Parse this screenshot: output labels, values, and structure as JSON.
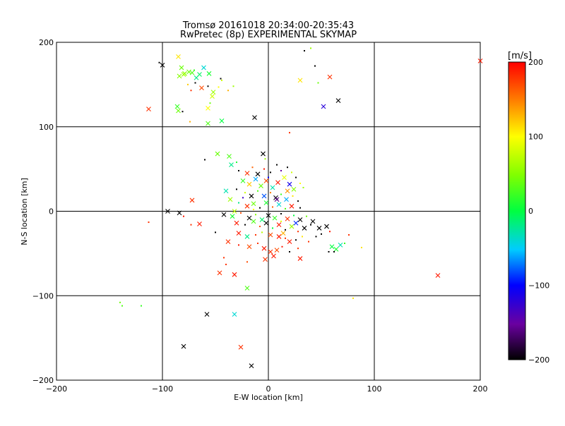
{
  "chart_data": {
    "type": "scatter",
    "title": "Tromsø 20161018 20:34:00-20:35:43",
    "subtitle": "RwPretec (8p) EXPERIMENTAL SKYMAP",
    "xlabel": "E-W location [km]",
    "ylabel": "N-S location [km]",
    "xlim": [
      -200,
      200
    ],
    "ylim": [
      -200,
      200
    ],
    "x_ticks": [
      -200,
      -100,
      0,
      100,
      200
    ],
    "y_ticks": [
      -200,
      -100,
      0,
      100,
      200
    ],
    "x_tick_labels": [
      "−200",
      "−100",
      "0",
      "100",
      "200"
    ],
    "y_tick_labels": [
      "−200",
      "−100",
      "0",
      "100",
      "200"
    ],
    "grid": true,
    "colorbar": {
      "label": "[m/s]",
      "min": -200,
      "max": 200,
      "ticks": [
        200,
        100,
        0,
        -100,
        -200
      ],
      "tick_labels": [
        "200",
        "100",
        "0",
        "−100",
        "−200"
      ]
    },
    "points": [
      {
        "x": -100,
        "y": 173,
        "v": -200,
        "m": "x"
      },
      {
        "x": -103,
        "y": 176,
        "v": -200,
        "m": "dot"
      },
      {
        "x": -85,
        "y": 183,
        "v": 110,
        "m": "x"
      },
      {
        "x": -82,
        "y": 170,
        "v": 40,
        "m": "x"
      },
      {
        "x": -79,
        "y": 163,
        "v": 50,
        "m": "x"
      },
      {
        "x": -75,
        "y": 165,
        "v": 40,
        "m": "x"
      },
      {
        "x": -72,
        "y": 164,
        "v": 30,
        "m": "x"
      },
      {
        "x": -70,
        "y": 167,
        "v": 20,
        "m": "dot"
      },
      {
        "x": -68,
        "y": 158,
        "v": -20,
        "m": "x"
      },
      {
        "x": -65,
        "y": 162,
        "v": -10,
        "m": "x"
      },
      {
        "x": -61,
        "y": 170,
        "v": -40,
        "m": "x"
      },
      {
        "x": -56,
        "y": 163,
        "v": 10,
        "m": "x"
      },
      {
        "x": -80,
        "y": 162,
        "v": 60,
        "m": "x"
      },
      {
        "x": -84,
        "y": 160,
        "v": 50,
        "m": "x"
      },
      {
        "x": -76,
        "y": 150,
        "v": 120,
        "m": "dot"
      },
      {
        "x": -73,
        "y": 143,
        "v": 180,
        "m": "dot"
      },
      {
        "x": -69,
        "y": 152,
        "v": -200,
        "m": "dot"
      },
      {
        "x": -63,
        "y": 146,
        "v": 170,
        "m": "x"
      },
      {
        "x": -57,
        "y": 148,
        "v": -200,
        "m": "dot"
      },
      {
        "x": -53,
        "y": 136,
        "v": 80,
        "m": "x"
      },
      {
        "x": -52,
        "y": 141,
        "v": 60,
        "m": "x"
      },
      {
        "x": -47,
        "y": 147,
        "v": 100,
        "m": "dot"
      },
      {
        "x": -44,
        "y": 155,
        "v": 80,
        "m": "dot"
      },
      {
        "x": -38,
        "y": 143,
        "v": 130,
        "m": "dot"
      },
      {
        "x": -33,
        "y": 148,
        "v": 60,
        "m": "dot"
      },
      {
        "x": -55,
        "y": 128,
        "v": 40,
        "m": "dot"
      },
      {
        "x": -57,
        "y": 122,
        "v": 100,
        "m": "x"
      },
      {
        "x": -86,
        "y": 124,
        "v": 20,
        "m": "x"
      },
      {
        "x": -85,
        "y": 119,
        "v": 40,
        "m": "x"
      },
      {
        "x": -81,
        "y": 118,
        "v": -200,
        "m": "dot"
      },
      {
        "x": -113,
        "y": 121,
        "v": 180,
        "m": "x"
      },
      {
        "x": -74,
        "y": 106,
        "v": 130,
        "m": "dot"
      },
      {
        "x": -57,
        "y": 104,
        "v": 30,
        "m": "x"
      },
      {
        "x": -44,
        "y": 107,
        "v": 0,
        "m": "x"
      },
      {
        "x": -45,
        "y": 157,
        "v": -200,
        "m": "dot"
      },
      {
        "x": -13,
        "y": 111,
        "v": -200,
        "m": "x"
      },
      {
        "x": 34,
        "y": 190,
        "v": -200,
        "m": "dot"
      },
      {
        "x": 40,
        "y": 193,
        "v": 60,
        "m": "dot"
      },
      {
        "x": 44,
        "y": 172,
        "v": -200,
        "m": "dot"
      },
      {
        "x": 58,
        "y": 159,
        "v": 180,
        "m": "x"
      },
      {
        "x": 47,
        "y": 152,
        "v": 40,
        "m": "dot"
      },
      {
        "x": 30,
        "y": 155,
        "v": 110,
        "m": "x"
      },
      {
        "x": 52,
        "y": 124,
        "v": -120,
        "m": "x"
      },
      {
        "x": 66,
        "y": 131,
        "v": -200,
        "m": "x"
      },
      {
        "x": 200,
        "y": 178,
        "v": 190,
        "m": "x"
      },
      {
        "x": 20,
        "y": 93,
        "v": 180,
        "m": "dot"
      },
      {
        "x": -48,
        "y": 68,
        "v": 40,
        "m": "x"
      },
      {
        "x": -37,
        "y": 65,
        "v": 30,
        "m": "x"
      },
      {
        "x": -35,
        "y": 55,
        "v": -20,
        "m": "x"
      },
      {
        "x": -30,
        "y": 58,
        "v": 10,
        "m": "dot"
      },
      {
        "x": -60,
        "y": 61,
        "v": -200,
        "m": "dot"
      },
      {
        "x": -5,
        "y": 68,
        "v": -200,
        "m": "x"
      },
      {
        "x": -3,
        "y": 62,
        "v": 60,
        "m": "dot"
      },
      {
        "x": -28,
        "y": 48,
        "v": -200,
        "m": "dot"
      },
      {
        "x": -20,
        "y": 45,
        "v": 180,
        "m": "x"
      },
      {
        "x": -15,
        "y": 52,
        "v": 160,
        "m": "dot"
      },
      {
        "x": -10,
        "y": 44,
        "v": -200,
        "m": "x"
      },
      {
        "x": -4,
        "y": 50,
        "v": 190,
        "m": "dot"
      },
      {
        "x": 2,
        "y": 46,
        "v": -200,
        "m": "dot"
      },
      {
        "x": 8,
        "y": 55,
        "v": -200,
        "m": "dot"
      },
      {
        "x": 12,
        "y": 48,
        "v": -150,
        "m": "dot"
      },
      {
        "x": 18,
        "y": 52,
        "v": -200,
        "m": "dot"
      },
      {
        "x": 22,
        "y": 46,
        "v": 80,
        "m": "dot"
      },
      {
        "x": 26,
        "y": 40,
        "v": -200,
        "m": "dot"
      },
      {
        "x": 30,
        "y": 33,
        "v": 100,
        "m": "dot"
      },
      {
        "x": 33,
        "y": 28,
        "v": 60,
        "m": "dot"
      },
      {
        "x": -24,
        "y": 36,
        "v": 20,
        "m": "x"
      },
      {
        "x": -18,
        "y": 32,
        "v": 120,
        "m": "x"
      },
      {
        "x": -12,
        "y": 38,
        "v": -60,
        "m": "x"
      },
      {
        "x": -7,
        "y": 30,
        "v": 40,
        "m": "x"
      },
      {
        "x": -2,
        "y": 36,
        "v": 170,
        "m": "x"
      },
      {
        "x": 4,
        "y": 28,
        "v": -30,
        "m": "x"
      },
      {
        "x": 9,
        "y": 34,
        "v": 190,
        "m": "x"
      },
      {
        "x": 15,
        "y": 40,
        "v": 90,
        "m": "x"
      },
      {
        "x": 20,
        "y": 32,
        "v": -110,
        "m": "x"
      },
      {
        "x": 24,
        "y": 26,
        "v": 50,
        "m": "x"
      },
      {
        "x": -30,
        "y": 26,
        "v": -200,
        "m": "dot"
      },
      {
        "x": -40,
        "y": 24,
        "v": -30,
        "m": "x"
      },
      {
        "x": -22,
        "y": 22,
        "v": 80,
        "m": "dot"
      },
      {
        "x": -16,
        "y": 18,
        "v": -200,
        "m": "x"
      },
      {
        "x": -10,
        "y": 24,
        "v": 30,
        "m": "dot"
      },
      {
        "x": -4,
        "y": 18,
        "v": -80,
        "m": "x"
      },
      {
        "x": 2,
        "y": 22,
        "v": 150,
        "m": "dot"
      },
      {
        "x": 7,
        "y": 16,
        "v": -200,
        "m": "x"
      },
      {
        "x": 12,
        "y": 20,
        "v": 20,
        "m": "dot"
      },
      {
        "x": 17,
        "y": 14,
        "v": -60,
        "m": "x"
      },
      {
        "x": 23,
        "y": 18,
        "v": 110,
        "m": "dot"
      },
      {
        "x": 28,
        "y": 12,
        "v": -200,
        "m": "dot"
      },
      {
        "x": -36,
        "y": 14,
        "v": 60,
        "m": "x"
      },
      {
        "x": -28,
        "y": 10,
        "v": -20,
        "m": "dot"
      },
      {
        "x": -20,
        "y": 6,
        "v": 180,
        "m": "x"
      },
      {
        "x": -14,
        "y": 9,
        "v": 40,
        "m": "x"
      },
      {
        "x": -8,
        "y": 4,
        "v": -200,
        "m": "dot"
      },
      {
        "x": -2,
        "y": 10,
        "v": 10,
        "m": "x"
      },
      {
        "x": 4,
        "y": 5,
        "v": 160,
        "m": "dot"
      },
      {
        "x": 10,
        "y": 8,
        "v": -40,
        "m": "x"
      },
      {
        "x": 16,
        "y": 3,
        "v": 30,
        "m": "dot"
      },
      {
        "x": 22,
        "y": 6,
        "v": 190,
        "m": "x"
      },
      {
        "x": 30,
        "y": 4,
        "v": -200,
        "m": "dot"
      },
      {
        "x": -42,
        "y": -4,
        "v": -200,
        "m": "x"
      },
      {
        "x": -34,
        "y": -6,
        "v": 10,
        "m": "x"
      },
      {
        "x": -26,
        "y": -2,
        "v": 170,
        "m": "dot"
      },
      {
        "x": -18,
        "y": -8,
        "v": -200,
        "m": "x"
      },
      {
        "x": -12,
        "y": -4,
        "v": 50,
        "m": "dot"
      },
      {
        "x": -6,
        "y": -10,
        "v": -10,
        "m": "x"
      },
      {
        "x": 0,
        "y": -5,
        "v": -200,
        "m": "x"
      },
      {
        "x": 6,
        "y": -8,
        "v": 20,
        "m": "x"
      },
      {
        "x": 12,
        "y": -3,
        "v": -200,
        "m": "dot"
      },
      {
        "x": 18,
        "y": -9,
        "v": 180,
        "m": "x"
      },
      {
        "x": 24,
        "y": -5,
        "v": 0,
        "m": "dot"
      },
      {
        "x": 30,
        "y": -10,
        "v": -200,
        "m": "x"
      },
      {
        "x": 36,
        "y": -6,
        "v": 40,
        "m": "dot"
      },
      {
        "x": 42,
        "y": -12,
        "v": -200,
        "m": "x"
      },
      {
        "x": -30,
        "y": -14,
        "v": 190,
        "m": "x"
      },
      {
        "x": -22,
        "y": -16,
        "v": -200,
        "m": "dot"
      },
      {
        "x": -14,
        "y": -12,
        "v": 30,
        "m": "x"
      },
      {
        "x": -8,
        "y": -18,
        "v": 170,
        "m": "dot"
      },
      {
        "x": -2,
        "y": -14,
        "v": -200,
        "m": "x"
      },
      {
        "x": 4,
        "y": -20,
        "v": 0,
        "m": "dot"
      },
      {
        "x": 10,
        "y": -16,
        "v": 190,
        "m": "x"
      },
      {
        "x": 16,
        "y": -22,
        "v": -200,
        "m": "dot"
      },
      {
        "x": 22,
        "y": -18,
        "v": 60,
        "m": "x"
      },
      {
        "x": 28,
        "y": -24,
        "v": 180,
        "m": "dot"
      },
      {
        "x": 34,
        "y": -20,
        "v": -200,
        "m": "x"
      },
      {
        "x": 40,
        "y": -16,
        "v": -200,
        "m": "dot"
      },
      {
        "x": 48,
        "y": -20,
        "v": -200,
        "m": "x"
      },
      {
        "x": 55,
        "y": -18,
        "v": -200,
        "m": "x"
      },
      {
        "x": 58,
        "y": -24,
        "v": 190,
        "m": "dot"
      },
      {
        "x": 50,
        "y": -27,
        "v": -200,
        "m": "dot"
      },
      {
        "x": 45,
        "y": -30,
        "v": -200,
        "m": "dot"
      },
      {
        "x": -28,
        "y": -26,
        "v": 190,
        "m": "x"
      },
      {
        "x": -20,
        "y": -30,
        "v": -20,
        "m": "x"
      },
      {
        "x": -12,
        "y": -28,
        "v": 180,
        "m": "dot"
      },
      {
        "x": 2,
        "y": -28,
        "v": 170,
        "m": "x"
      },
      {
        "x": 10,
        "y": -30,
        "v": 190,
        "m": "x"
      },
      {
        "x": 16,
        "y": -32,
        "v": 180,
        "m": "dot"
      },
      {
        "x": 20,
        "y": -36,
        "v": 190,
        "m": "x"
      },
      {
        "x": 26,
        "y": -34,
        "v": -200,
        "m": "dot"
      },
      {
        "x": 32,
        "y": -30,
        "v": 110,
        "m": "dot"
      },
      {
        "x": 38,
        "y": -36,
        "v": 180,
        "m": "dot"
      },
      {
        "x": -38,
        "y": -36,
        "v": 180,
        "m": "x"
      },
      {
        "x": -28,
        "y": -40,
        "v": 190,
        "m": "dot"
      },
      {
        "x": -18,
        "y": -42,
        "v": 170,
        "m": "x"
      },
      {
        "x": -10,
        "y": -38,
        "v": 180,
        "m": "dot"
      },
      {
        "x": -4,
        "y": -44,
        "v": 190,
        "m": "x"
      },
      {
        "x": 2,
        "y": -48,
        "v": 180,
        "m": "x"
      },
      {
        "x": 5,
        "y": -53,
        "v": 190,
        "m": "x"
      },
      {
        "x": 8,
        "y": -46,
        "v": 170,
        "m": "x"
      },
      {
        "x": 13,
        "y": -42,
        "v": 190,
        "m": "dot"
      },
      {
        "x": 20,
        "y": -48,
        "v": -200,
        "m": "dot"
      },
      {
        "x": 28,
        "y": -44,
        "v": 180,
        "m": "dot"
      },
      {
        "x": 30,
        "y": -56,
        "v": 190,
        "m": "x"
      },
      {
        "x": -3,
        "y": -57,
        "v": 180,
        "m": "x"
      },
      {
        "x": -20,
        "y": -60,
        "v": 170,
        "m": "dot"
      },
      {
        "x": -42,
        "y": -55,
        "v": 180,
        "m": "dot"
      },
      {
        "x": -65,
        "y": -15,
        "v": 190,
        "m": "x"
      },
      {
        "x": -73,
        "y": -16,
        "v": 180,
        "m": "dot"
      },
      {
        "x": -80,
        "y": -6,
        "v": 190,
        "m": "dot"
      },
      {
        "x": -84,
        "y": -2,
        "v": -200,
        "m": "x"
      },
      {
        "x": -95,
        "y": 0,
        "v": -200,
        "m": "x"
      },
      {
        "x": -113,
        "y": -13,
        "v": 180,
        "m": "dot"
      },
      {
        "x": -72,
        "y": 13,
        "v": 180,
        "m": "x"
      },
      {
        "x": -50,
        "y": -25,
        "v": -200,
        "m": "dot"
      },
      {
        "x": -40,
        "y": -63,
        "v": 180,
        "m": "dot"
      },
      {
        "x": -46,
        "y": -73,
        "v": 180,
        "m": "x"
      },
      {
        "x": -32,
        "y": -75,
        "v": 190,
        "m": "x"
      },
      {
        "x": -20,
        "y": -91,
        "v": 30,
        "m": "x"
      },
      {
        "x": 60,
        "y": -42,
        "v": 0,
        "m": "x"
      },
      {
        "x": 64,
        "y": -45,
        "v": 10,
        "m": "x"
      },
      {
        "x": 68,
        "y": -40,
        "v": -30,
        "m": "x"
      },
      {
        "x": 62,
        "y": -48,
        "v": -200,
        "m": "dot"
      },
      {
        "x": 57,
        "y": -48,
        "v": -200,
        "m": "dot"
      },
      {
        "x": 72,
        "y": -38,
        "v": 20,
        "m": "dot"
      },
      {
        "x": 76,
        "y": -28,
        "v": 180,
        "m": "dot"
      },
      {
        "x": 88,
        "y": -43,
        "v": 110,
        "m": "dot"
      },
      {
        "x": 80,
        "y": -103,
        "v": 110,
        "m": "dot"
      },
      {
        "x": 160,
        "y": -76,
        "v": 190,
        "m": "x"
      },
      {
        "x": -140,
        "y": -108,
        "v": 40,
        "m": "dot"
      },
      {
        "x": -138,
        "y": -112,
        "v": 30,
        "m": "dot"
      },
      {
        "x": -120,
        "y": -112,
        "v": 20,
        "m": "dot"
      },
      {
        "x": -58,
        "y": -122,
        "v": -200,
        "m": "x"
      },
      {
        "x": -32,
        "y": -122,
        "v": -40,
        "m": "x"
      },
      {
        "x": -80,
        "y": -160,
        "v": -200,
        "m": "x"
      },
      {
        "x": -26,
        "y": -161,
        "v": 180,
        "m": "x"
      },
      {
        "x": -16,
        "y": -183,
        "v": -200,
        "m": "x"
      },
      {
        "x": -6,
        "y": -25,
        "v": 70,
        "m": "dot"
      },
      {
        "x": 12,
        "y": -12,
        "v": 90,
        "m": "dot"
      },
      {
        "x": -14,
        "y": 2,
        "v": 100,
        "m": "dot"
      },
      {
        "x": 8,
        "y": 14,
        "v": -160,
        "m": "x"
      },
      {
        "x": -24,
        "y": 16,
        "v": -130,
        "m": "dot"
      },
      {
        "x": 18,
        "y": 24,
        "v": 140,
        "m": "x"
      },
      {
        "x": 26,
        "y": -14,
        "v": -90,
        "m": "x"
      },
      {
        "x": -32,
        "y": 0,
        "v": 70,
        "m": "x"
      },
      {
        "x": 0,
        "y": 40,
        "v": -100,
        "m": "dot"
      },
      {
        "x": 14,
        "y": -26,
        "v": 130,
        "m": "x"
      }
    ]
  }
}
